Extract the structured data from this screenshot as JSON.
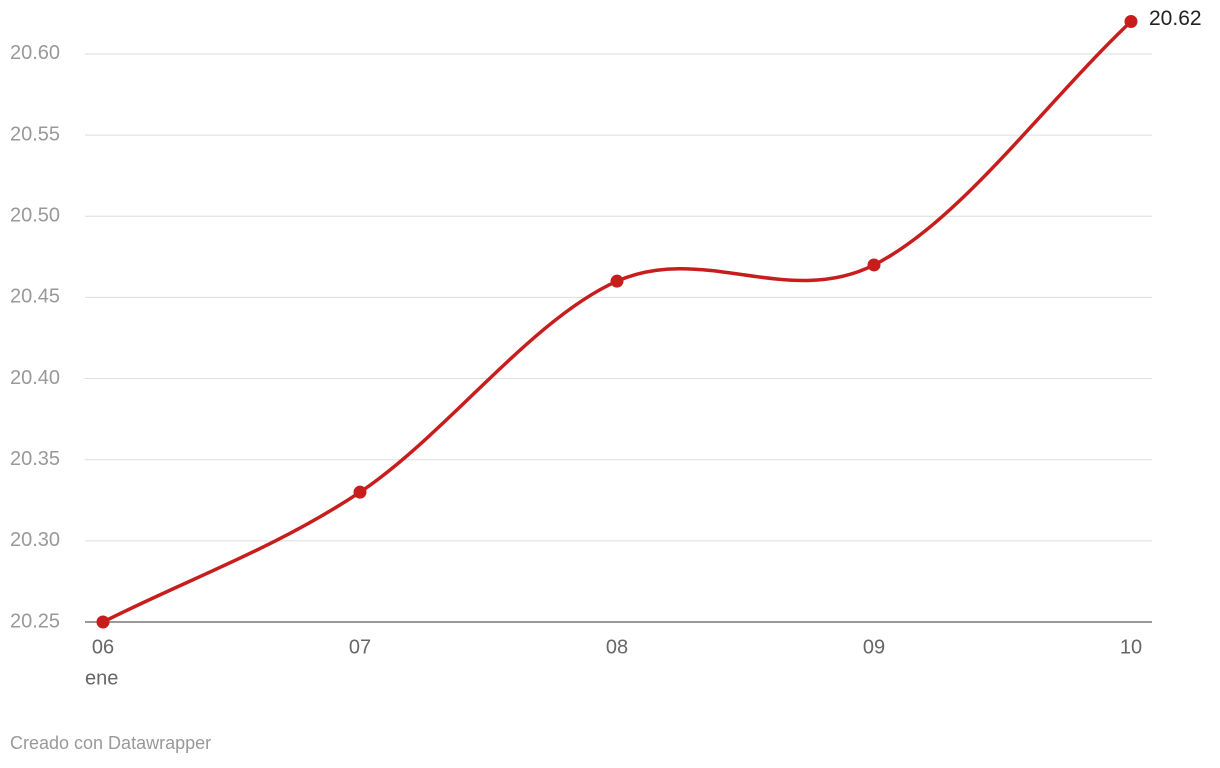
{
  "chart_data": {
    "type": "line",
    "categories": [
      "06",
      "07",
      "08",
      "09",
      "10"
    ],
    "category_sublabel": "ene",
    "series": [
      {
        "color": "#c71e1d",
        "values": [
          20.25,
          20.33,
          20.46,
          20.47,
          20.62
        ]
      }
    ],
    "ylim": [
      20.25,
      20.62
    ],
    "yticks": [
      20.25,
      {
        "value": 20.3,
        "label": "20.30"
      },
      20.35,
      {
        "value": 20.4,
        "label": "20.40"
      },
      20.45,
      {
        "value": 20.5,
        "label": "20.50"
      },
      20.55,
      {
        "value": 20.6,
        "label": "20.60"
      }
    ],
    "grid": true,
    "footer": "Creado con Datawrapper"
  }
}
